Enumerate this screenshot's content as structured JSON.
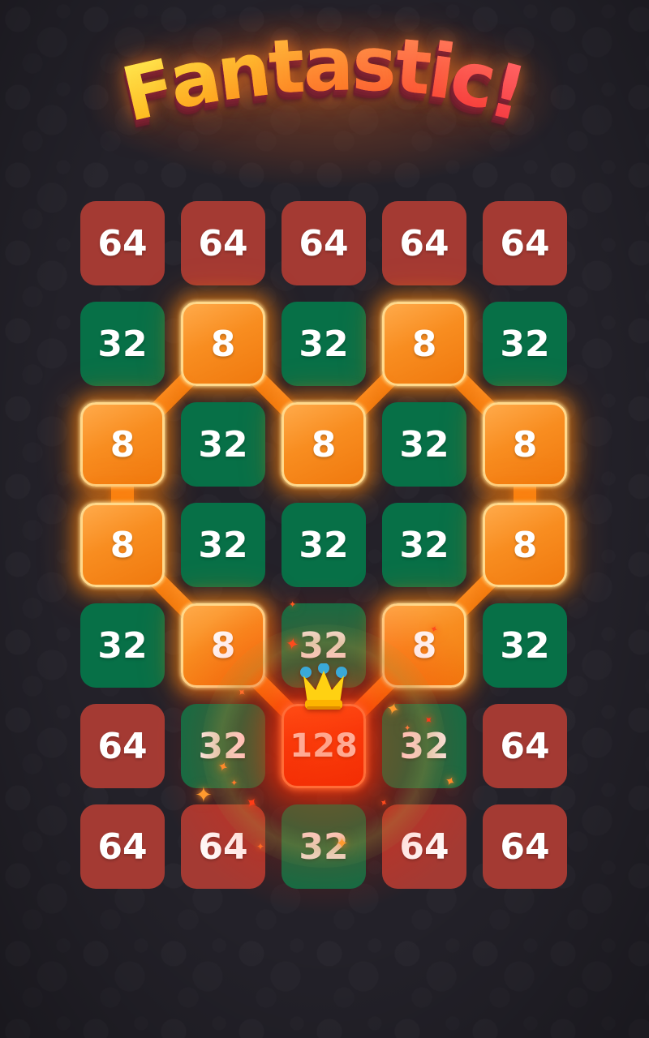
{
  "banner": {
    "text": "Fantastic!",
    "letters": [
      {
        "ch": "F",
        "c1": "#ffe24a",
        "c2": "#fdb91e"
      },
      {
        "ch": "a",
        "c1": "#ffd63e",
        "c2": "#fda820"
      },
      {
        "ch": "n",
        "c1": "#ffc636",
        "c2": "#fd9820"
      },
      {
        "ch": "t",
        "c1": "#ffb43b",
        "c2": "#fd8824"
      },
      {
        "ch": "a",
        "c1": "#ffa441",
        "c2": "#fd7629"
      },
      {
        "ch": "s",
        "c1": "#ff9349",
        "c2": "#fc6430"
      },
      {
        "ch": "t",
        "c1": "#ff8251",
        "c2": "#fb5636"
      },
      {
        "ch": "i",
        "c1": "#ff7357",
        "c2": "#f9483a"
      },
      {
        "ch": "c",
        "c1": "#ff685d",
        "c2": "#f63e3c"
      },
      {
        "ch": "!",
        "c1": "#ff6161",
        "c2": "#f43a40"
      }
    ],
    "glow_color": "#ff7b2a",
    "extrude_color": "#7e2133"
  },
  "board": {
    "rows": 7,
    "cols": 5,
    "values": [
      [
        "64",
        "64",
        "64",
        "64",
        "64"
      ],
      [
        "32",
        "8",
        "32",
        "8",
        "32"
      ],
      [
        "8",
        "32",
        "8",
        "32",
        "8"
      ],
      [
        "8",
        "32",
        "32",
        "32",
        "8"
      ],
      [
        "32",
        "8",
        "32",
        "8",
        "32"
      ],
      [
        "64",
        "32",
        "128",
        "32",
        "64"
      ],
      [
        "64",
        "64",
        "32",
        "64",
        "64"
      ]
    ],
    "types": [
      [
        "maroon",
        "maroon",
        "maroon",
        "maroon",
        "maroon"
      ],
      [
        "green",
        "orange",
        "green",
        "orange",
        "green"
      ],
      [
        "orange",
        "green",
        "orange",
        "green",
        "orange"
      ],
      [
        "orange",
        "green",
        "green",
        "green",
        "orange"
      ],
      [
        "green",
        "orange",
        "green",
        "orange",
        "green"
      ],
      [
        "maroon",
        "green",
        "red128",
        "green",
        "maroon"
      ],
      [
        "maroon",
        "maroon",
        "green",
        "maroon",
        "maroon"
      ]
    ],
    "crown_cell": [
      6,
      3
    ],
    "chain_links": [
      {
        "from": [
          2,
          2
        ],
        "to": [
          3,
          1
        ]
      },
      {
        "from": [
          2,
          2
        ],
        "to": [
          3,
          3
        ]
      },
      {
        "from": [
          2,
          4
        ],
        "to": [
          3,
          3
        ]
      },
      {
        "from": [
          2,
          4
        ],
        "to": [
          3,
          5
        ]
      },
      {
        "from": [
          3,
          1
        ],
        "to": [
          4,
          1
        ]
      },
      {
        "from": [
          3,
          5
        ],
        "to": [
          4,
          5
        ]
      },
      {
        "from": [
          4,
          1
        ],
        "to": [
          5,
          2
        ]
      },
      {
        "from": [
          4,
          5
        ],
        "to": [
          5,
          4
        ]
      },
      {
        "from": [
          5,
          2
        ],
        "to": [
          6,
          3
        ]
      },
      {
        "from": [
          5,
          4
        ],
        "to": [
          6,
          3
        ]
      }
    ]
  },
  "colors": {
    "background": "#232129",
    "tile_maroon": "#a43a33",
    "tile_green": "#077047",
    "tile_orange": "#f8861c",
    "tile_orange_border": "#ffd98c",
    "tile_red": "#f43a10",
    "tile_red_border": "#ff8f56",
    "connector": "#f5831c",
    "number_text": "#ffffff",
    "crown_gold": "#ffd112",
    "crown_band": "#fdb400",
    "crown_dots": "#3aa9d8"
  }
}
